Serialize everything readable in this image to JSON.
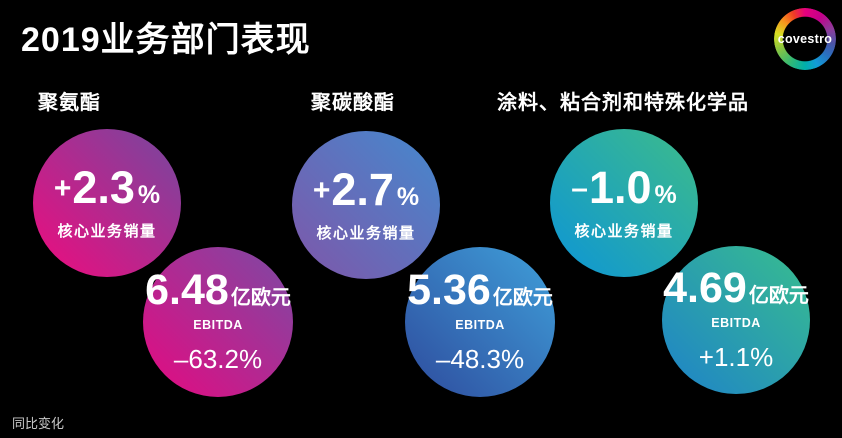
{
  "title": "2019业务部门表现",
  "logo": {
    "text": "covestro"
  },
  "labels": {
    "volume": "核心业务销量",
    "ebitda": "EBITDA",
    "unit": "亿欧元",
    "percent": "%"
  },
  "footer": {
    "note": "同比变化"
  },
  "colors": {
    "background": "#000000",
    "text": "#ffffff",
    "footer_text": "#c9c9c9"
  },
  "segments": [
    {
      "name": "聚氨酯",
      "volume_sign": "+",
      "volume_value": "2.3",
      "ebitda_value": "6.48",
      "ebitda_change": "–63.2%",
      "volume_circle_gradient": {
        "angle": "45deg",
        "from": "#EF0B7E",
        "to": "#74489F"
      },
      "ebitda_circle_gradient": {
        "angle": "45deg",
        "from": "#E60980",
        "to": "#7B4AA4"
      }
    },
    {
      "name": "聚碳酸酯",
      "volume_sign": "+",
      "volume_value": "2.7",
      "ebitda_value": "5.36",
      "ebitda_change": "–48.3%",
      "volume_circle_gradient": {
        "angle": "45deg",
        "from": "#7F56A9",
        "to": "#4489CE"
      },
      "ebitda_circle_gradient": {
        "angle": "45deg",
        "from": "#2E4B9D",
        "to": "#3FA0DA"
      }
    },
    {
      "name": "涂料、粘合剂和特殊化学品",
      "volume_sign": "–",
      "volume_value": "1.0",
      "ebitda_value": "4.69",
      "ebitda_change": "+1.1%",
      "volume_circle_gradient": {
        "angle": "45deg",
        "from": "#0D95D6",
        "to": "#3DBC8A"
      },
      "ebitda_circle_gradient": {
        "angle": "45deg",
        "from": "#1E82C9",
        "to": "#38BE8E"
      }
    }
  ],
  "chart_data": {
    "type": "table",
    "title": "2019业务部门表现",
    "categories": [
      "聚氨酯",
      "聚碳酸酯",
      "涂料、粘合剂和特殊化学品"
    ],
    "series": [
      {
        "name": "核心业务销量同比变化 (%)",
        "values": [
          2.3,
          2.7,
          -1.0
        ]
      },
      {
        "name": "EBITDA (亿欧元)",
        "values": [
          6.48,
          5.36,
          4.69
        ]
      },
      {
        "name": "EBITDA同比变化 (%)",
        "values": [
          -63.2,
          -48.3,
          1.1
        ]
      }
    ],
    "footnote": "同比变化",
    "legend_position": "none",
    "grid": false
  }
}
